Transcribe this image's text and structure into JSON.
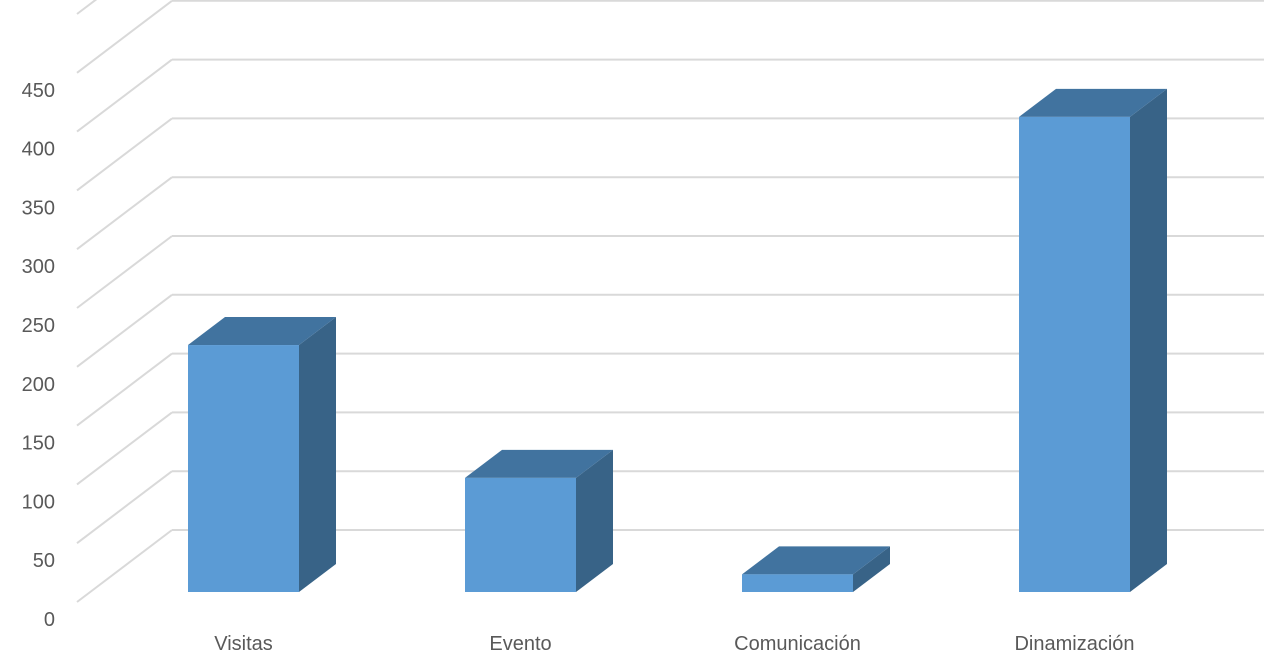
{
  "chart_data": {
    "type": "bar",
    "title": "",
    "xlabel": "",
    "ylabel": "",
    "categories": [
      "Visitas",
      "Evento",
      "Comunicación",
      "Dinamización"
    ],
    "values": [
      210,
      97,
      15,
      404
    ],
    "ylim": [
      0,
      500
    ],
    "yticks": [
      0,
      50,
      100,
      150,
      200,
      250,
      300,
      350,
      400,
      450
    ],
    "grid": true,
    "legend": "none",
    "three_d": true,
    "colors": {
      "front": "#5b9bd5",
      "side": "#386387",
      "top": "#41739f",
      "grid": "#d9d9d9",
      "text": "#595959"
    }
  }
}
